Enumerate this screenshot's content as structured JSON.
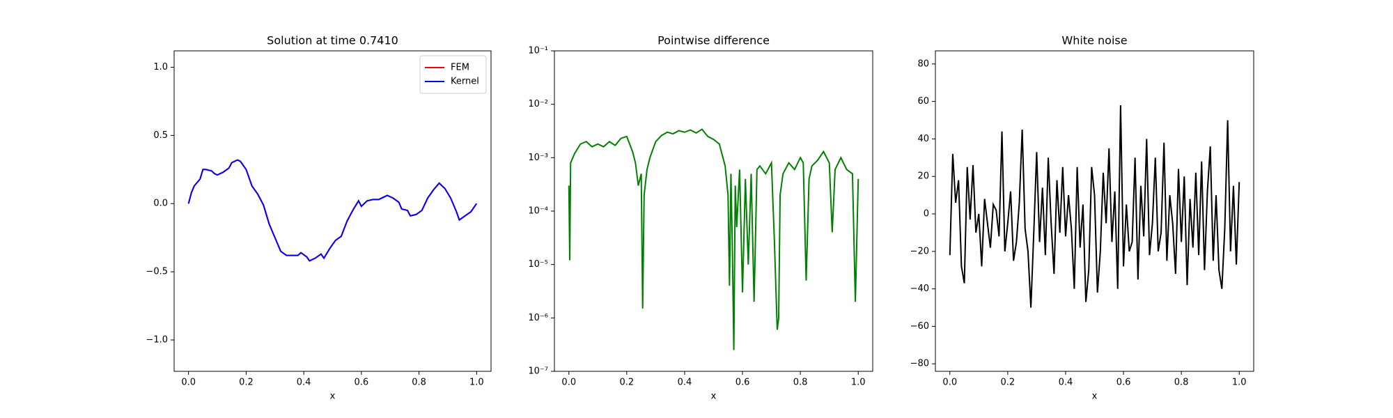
{
  "chart_data": [
    {
      "type": "line",
      "title": "Solution at time 0.7410",
      "xlabel": "x",
      "xlim": [
        -0.05,
        1.05
      ],
      "ylim": [
        -1.23,
        1.12
      ],
      "xticks": [
        {
          "value": 0,
          "label": "0.0"
        },
        {
          "value": 0.2,
          "label": "0.2"
        },
        {
          "value": 0.4,
          "label": "0.4"
        },
        {
          "value": 0.6,
          "label": "0.6"
        },
        {
          "value": 0.8,
          "label": "0.8"
        },
        {
          "value": 1,
          "label": "1.0"
        }
      ],
      "yticks": [
        {
          "value": -1,
          "label": "−1.0"
        },
        {
          "value": -0.5,
          "label": "−0.5"
        },
        {
          "value": 0,
          "label": "0.0"
        },
        {
          "value": 0.5,
          "label": "0.5"
        },
        {
          "value": 1,
          "label": "1.0"
        }
      ],
      "legend": "upper right",
      "x": [
        0,
        0.01,
        0.02,
        0.04,
        0.05,
        0.06,
        0.08,
        0.09,
        0.1,
        0.12,
        0.14,
        0.15,
        0.17,
        0.18,
        0.2,
        0.22,
        0.24,
        0.26,
        0.28,
        0.3,
        0.32,
        0.34,
        0.36,
        0.38,
        0.39,
        0.41,
        0.42,
        0.44,
        0.46,
        0.47,
        0.49,
        0.51,
        0.53,
        0.55,
        0.57,
        0.59,
        0.6,
        0.62,
        0.64,
        0.66,
        0.68,
        0.69,
        0.71,
        0.73,
        0.74,
        0.76,
        0.77,
        0.79,
        0.81,
        0.83,
        0.85,
        0.87,
        0.89,
        0.91,
        0.93,
        0.94,
        0.96,
        0.98,
        1.0
      ],
      "series": [
        {
          "name": "FEM",
          "color": "#ff0000",
          "values": [
            0,
            0.08,
            0.13,
            0.18,
            0.25,
            0.25,
            0.24,
            0.22,
            0.21,
            0.23,
            0.26,
            0.3,
            0.32,
            0.31,
            0.25,
            0.13,
            0.07,
            -0.01,
            -0.15,
            -0.25,
            -0.35,
            -0.38,
            -0.38,
            -0.38,
            -0.36,
            -0.39,
            -0.42,
            -0.4,
            -0.37,
            -0.4,
            -0.33,
            -0.27,
            -0.24,
            -0.13,
            -0.05,
            0.02,
            -0.02,
            0.02,
            0.03,
            0.03,
            0.05,
            0.06,
            0.04,
            0.01,
            -0.04,
            -0.05,
            -0.09,
            -0.08,
            -0.05,
            0.04,
            0.1,
            0.15,
            0.11,
            0.04,
            -0.06,
            -0.12,
            -0.09,
            -0.06,
            0.0
          ]
        },
        {
          "name": "Kernel",
          "color": "#0000ff",
          "values": [
            0,
            0.08,
            0.13,
            0.18,
            0.25,
            0.25,
            0.24,
            0.22,
            0.21,
            0.23,
            0.26,
            0.3,
            0.32,
            0.31,
            0.25,
            0.13,
            0.07,
            -0.01,
            -0.15,
            -0.25,
            -0.35,
            -0.38,
            -0.38,
            -0.38,
            -0.36,
            -0.39,
            -0.42,
            -0.4,
            -0.37,
            -0.4,
            -0.33,
            -0.27,
            -0.24,
            -0.13,
            -0.05,
            0.02,
            -0.02,
            0.02,
            0.03,
            0.03,
            0.05,
            0.06,
            0.04,
            0.01,
            -0.04,
            -0.05,
            -0.09,
            -0.08,
            -0.05,
            0.04,
            0.1,
            0.15,
            0.11,
            0.04,
            -0.06,
            -0.12,
            -0.09,
            -0.06,
            0.0
          ]
        }
      ]
    },
    {
      "type": "line",
      "title": "Pointwise difference",
      "xlabel": "x",
      "yscale": "log",
      "xlim": [
        -0.05,
        1.05
      ],
      "ylim": [
        1e-07,
        0.1
      ],
      "xticks": [
        {
          "value": 0,
          "label": "0.0"
        },
        {
          "value": 0.2,
          "label": "0.2"
        },
        {
          "value": 0.4,
          "label": "0.4"
        },
        {
          "value": 0.6,
          "label": "0.6"
        },
        {
          "value": 0.8,
          "label": "0.8"
        },
        {
          "value": 1,
          "label": "1.0"
        }
      ],
      "yticks": [
        {
          "value": 1e-07,
          "label": "10⁻⁷"
        },
        {
          "value": 1e-06,
          "label": "10⁻⁶"
        },
        {
          "value": 1e-05,
          "label": "10⁻⁵"
        },
        {
          "value": 0.0001,
          "label": "10⁻⁴"
        },
        {
          "value": 0.001,
          "label": "10⁻³"
        },
        {
          "value": 0.01,
          "label": "10⁻²"
        },
        {
          "value": 0.1,
          "label": "10⁻¹"
        }
      ],
      "x": [
        0,
        0.003,
        0.006,
        0.02,
        0.04,
        0.06,
        0.08,
        0.1,
        0.12,
        0.14,
        0.16,
        0.18,
        0.2,
        0.22,
        0.23,
        0.24,
        0.25,
        0.255,
        0.26,
        0.27,
        0.28,
        0.3,
        0.32,
        0.34,
        0.36,
        0.38,
        0.4,
        0.42,
        0.44,
        0.46,
        0.48,
        0.5,
        0.52,
        0.54,
        0.55,
        0.555,
        0.56,
        0.565,
        0.57,
        0.575,
        0.58,
        0.59,
        0.6,
        0.61,
        0.62,
        0.63,
        0.64,
        0.65,
        0.66,
        0.68,
        0.7,
        0.71,
        0.72,
        0.725,
        0.73,
        0.74,
        0.76,
        0.78,
        0.8,
        0.81,
        0.82,
        0.83,
        0.84,
        0.86,
        0.88,
        0.9,
        0.91,
        0.92,
        0.94,
        0.96,
        0.98,
        0.99,
        1.0
      ],
      "series": [
        {
          "color": "#008000",
          "values": [
            0.0003,
            1.2e-05,
            0.0008,
            0.0012,
            0.0018,
            0.002,
            0.0016,
            0.0018,
            0.0016,
            0.002,
            0.0017,
            0.0023,
            0.0025,
            0.0013,
            0.0008,
            0.0003,
            0.0005,
            1.5e-06,
            0.0002,
            0.0006,
            0.001,
            0.002,
            0.0026,
            0.003,
            0.0028,
            0.0032,
            0.003,
            0.0033,
            0.0029,
            0.0034,
            0.0025,
            0.0022,
            0.0018,
            0.0007,
            0.0002,
            4e-06,
            0.0005,
            2e-05,
            2.5e-07,
            0.0003,
            5e-05,
            0.0006,
            3e-06,
            0.0004,
            1e-05,
            0.0005,
            2e-06,
            0.0006,
            0.0007,
            0.0005,
            0.0008,
            3e-05,
            6e-07,
            1e-06,
            0.0002,
            0.0005,
            0.0008,
            0.0006,
            0.001,
            0.0008,
            5e-06,
            0.0004,
            0.0007,
            0.0009,
            0.0013,
            0.0008,
            4e-05,
            0.0006,
            0.001,
            0.0006,
            0.0005,
            2e-06,
            0.0004
          ]
        }
      ]
    },
    {
      "type": "line",
      "title": "White noise",
      "xlabel": "x",
      "xlim": [
        -0.05,
        1.05
      ],
      "ylim": [
        -84,
        87
      ],
      "xticks": [
        {
          "value": 0,
          "label": "0.0"
        },
        {
          "value": 0.2,
          "label": "0.2"
        },
        {
          "value": 0.4,
          "label": "0.4"
        },
        {
          "value": 0.6,
          "label": "0.6"
        },
        {
          "value": 0.8,
          "label": "0.8"
        },
        {
          "value": 1,
          "label": "1.0"
        }
      ],
      "yticks": [
        {
          "value": -80,
          "label": "−80"
        },
        {
          "value": -60,
          "label": "−60"
        },
        {
          "value": -40,
          "label": "−40"
        },
        {
          "value": -20,
          "label": "−20"
        },
        0,
        20,
        40,
        60,
        80
      ],
      "x": [
        0,
        0.01,
        0.02,
        0.03,
        0.04,
        0.05,
        0.06,
        0.07,
        0.08,
        0.09,
        0.1,
        0.11,
        0.12,
        0.13,
        0.14,
        0.15,
        0.16,
        0.17,
        0.18,
        0.19,
        0.2,
        0.21,
        0.22,
        0.23,
        0.24,
        0.25,
        0.26,
        0.27,
        0.28,
        0.29,
        0.3,
        0.31,
        0.32,
        0.33,
        0.34,
        0.35,
        0.36,
        0.37,
        0.38,
        0.39,
        0.4,
        0.41,
        0.42,
        0.43,
        0.44,
        0.45,
        0.46,
        0.47,
        0.48,
        0.49,
        0.5,
        0.51,
        0.52,
        0.53,
        0.54,
        0.55,
        0.56,
        0.57,
        0.58,
        0.59,
        0.6,
        0.61,
        0.62,
        0.63,
        0.64,
        0.65,
        0.66,
        0.67,
        0.68,
        0.69,
        0.7,
        0.71,
        0.72,
        0.73,
        0.74,
        0.75,
        0.76,
        0.77,
        0.78,
        0.79,
        0.8,
        0.81,
        0.82,
        0.83,
        0.84,
        0.85,
        0.86,
        0.87,
        0.88,
        0.89,
        0.9,
        0.91,
        0.92,
        0.93,
        0.94,
        0.95,
        0.96,
        0.97,
        0.98,
        0.99,
        1.0
      ],
      "series": [
        {
          "color": "#000000",
          "values": [
            -22,
            32,
            6,
            18,
            -28,
            -37,
            25,
            -3,
            26,
            -10,
            0,
            -28,
            8,
            -5,
            -18,
            5,
            2,
            -12,
            44,
            -20,
            -5,
            12,
            -25,
            -15,
            6,
            45,
            -8,
            -20,
            -50,
            -10,
            33,
            -15,
            14,
            -22,
            30,
            -5,
            -32,
            18,
            -10,
            25,
            -12,
            10,
            -8,
            -40,
            25,
            -18,
            5,
            -47,
            -30,
            25,
            10,
            -42,
            -20,
            22,
            -5,
            35,
            -15,
            12,
            -40,
            58,
            -28,
            5,
            -20,
            -15,
            30,
            -35,
            15,
            -12,
            40,
            -22,
            -5,
            30,
            -20,
            -10,
            38,
            -25,
            10,
            -5,
            -32,
            24,
            -15,
            20,
            -38,
            8,
            -18,
            22,
            -22,
            28,
            -30,
            12,
            36,
            -25,
            10,
            -30,
            -40,
            -8,
            50,
            -20,
            15,
            -27,
            17
          ]
        }
      ]
    }
  ]
}
